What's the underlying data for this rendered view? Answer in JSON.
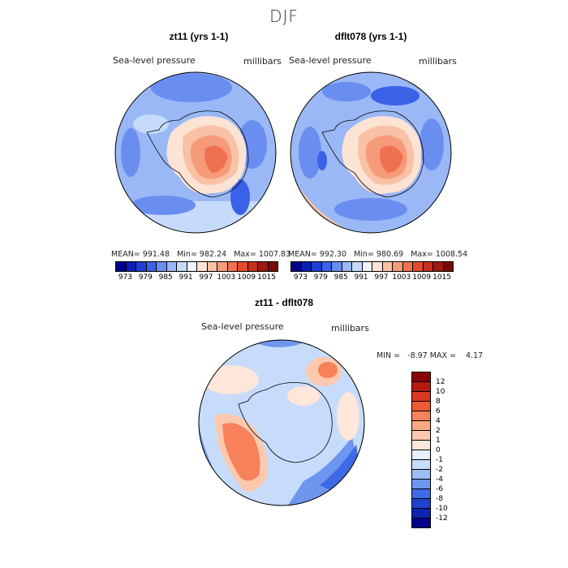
{
  "season": "DJF",
  "units": "millibars",
  "variable": "Sea-level pressure",
  "panels": [
    {
      "title": "zt11 (yrs 1-1)",
      "mean": "MEAN= 991.48",
      "min": "Min= 982.24",
      "max": "Max= 1007.83"
    },
    {
      "title": "dflt078 (yrs 1-1)",
      "mean": "MEAN= 992.30",
      "min": "Min= 980.69",
      "max": "Max= 1008.54"
    }
  ],
  "diff": {
    "title": "zt11 - dflt078",
    "minmax": "MIN =   -8.97 MAX =    4.17"
  },
  "top_colorbar": {
    "ticks": [
      "973",
      "979",
      "985",
      "991",
      "997",
      "1003",
      "1009",
      "1015"
    ],
    "colors": [
      "#00008b",
      "#0a1fb4",
      "#1c3fd6",
      "#3a62e6",
      "#6a8ef0",
      "#9ab8f5",
      "#c6dbfb",
      "#eef2fb",
      "#fde3d4",
      "#f9c1a6",
      "#f69b7a",
      "#f07151",
      "#e44a2e",
      "#c5301c",
      "#9e1a0e",
      "#7a0a06"
    ]
  },
  "diff_colorbar": {
    "labels": [
      "12",
      "10",
      "8",
      "6",
      "4",
      "2",
      "1",
      "0",
      "-1",
      "-2",
      "-4",
      "-6",
      "-8",
      "-10",
      "-12"
    ],
    "colors": [
      "#8b0000",
      "#b51a0e",
      "#d93822",
      "#ef5a33",
      "#f6815a",
      "#f9a784",
      "#fcc9ae",
      "#fde6da",
      "#e6f0fc",
      "#c7dcfa",
      "#9dbdf5",
      "#6f96ef",
      "#3f69e5",
      "#1f43cf",
      "#0c24b0",
      "#00008b"
    ]
  }
}
